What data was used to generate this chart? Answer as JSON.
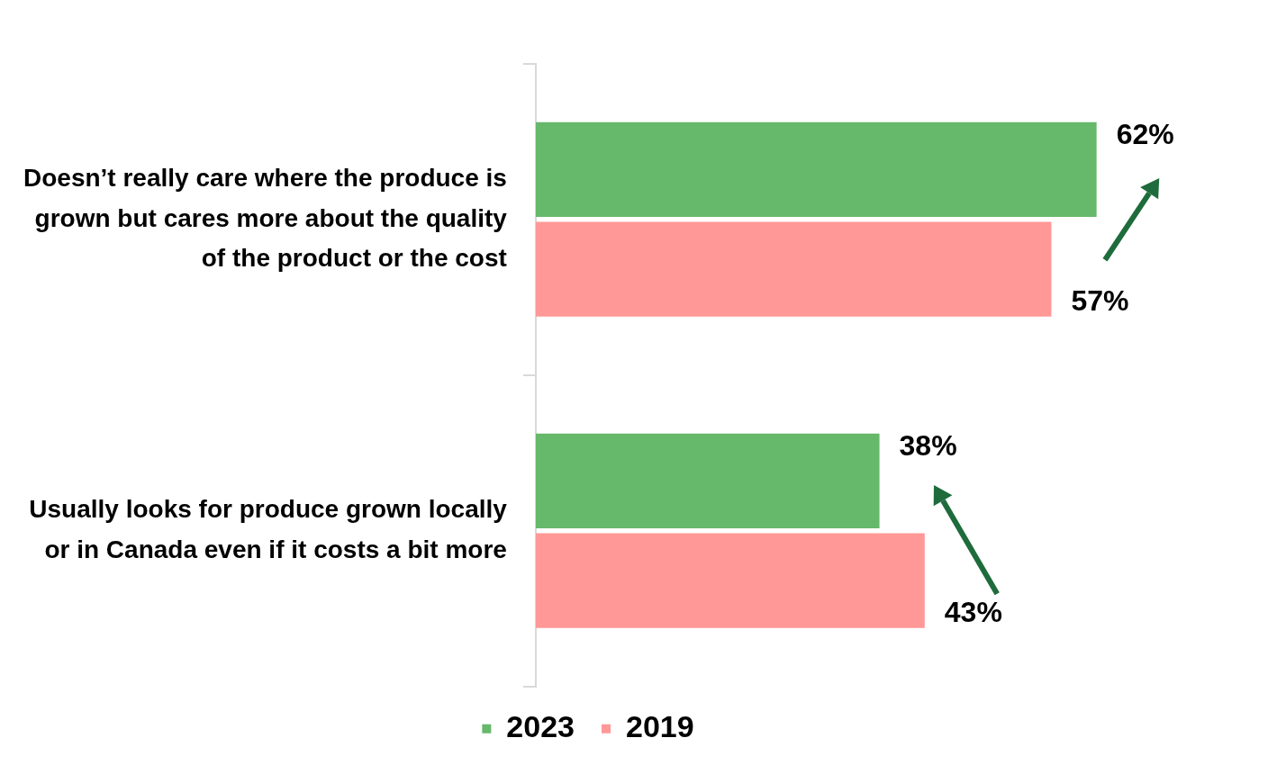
{
  "chart_data": {
    "type": "bar",
    "orientation": "horizontal",
    "categories": [
      "Doesn’t really care where the produce is grown but cares more about the quality of the product or the cost",
      "Usually looks for produce grown locally or in Canada even if it costs a bit more"
    ],
    "series": [
      {
        "name": "2023",
        "color": "#66b86a",
        "values": [
          62,
          38
        ],
        "value_labels": [
          "62%",
          "38%"
        ]
      },
      {
        "name": "2019",
        "color": "#ff9896",
        "values": [
          57,
          43
        ],
        "value_labels": [
          "57%",
          "43%"
        ]
      }
    ],
    "legend": "bottom",
    "grid": false
  }
}
